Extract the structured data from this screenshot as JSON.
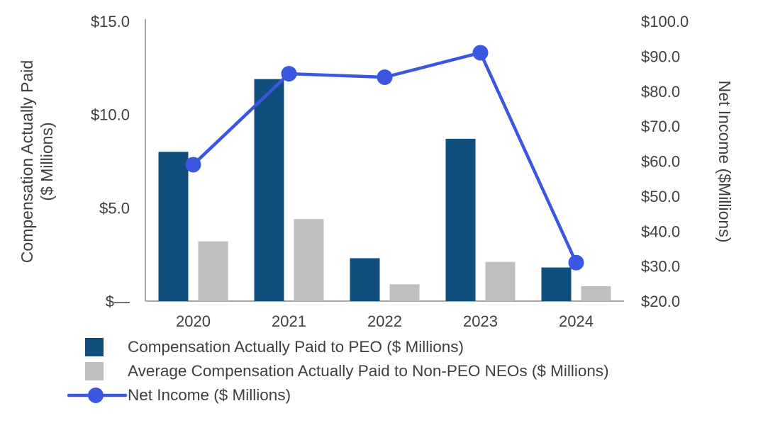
{
  "chart_data": {
    "type": "combo-bar-line",
    "categories": [
      "2020",
      "2021",
      "2022",
      "2023",
      "2024"
    ],
    "series": [
      {
        "name": "Compensation Actually Paid to PEO ($ Millions)",
        "chart_type": "bar",
        "axis": "left",
        "color": "#0F4E7D",
        "values": [
          8.0,
          11.9,
          2.3,
          8.7,
          1.8
        ]
      },
      {
        "name": "Average Compensation Actually Paid to Non-PEO NEOs ($ Millions)",
        "chart_type": "bar",
        "axis": "left",
        "color": "#BFBFBF",
        "values": [
          3.2,
          4.4,
          0.9,
          2.1,
          0.8
        ]
      },
      {
        "name": "Net Income ($ Millions)",
        "chart_type": "line",
        "axis": "right",
        "color": "#3B57E0",
        "values": [
          59,
          85,
          84,
          91,
          31
        ]
      }
    ],
    "left_axis": {
      "title_lines": [
        "Compensation Actually Paid",
        "($ Millions)"
      ],
      "min": 0,
      "max": 15,
      "ticks": [
        {
          "value": 0,
          "label": "$—"
        },
        {
          "value": 5,
          "label": "$5.0"
        },
        {
          "value": 10,
          "label": "$10.0"
        },
        {
          "value": 15,
          "label": "$15.0"
        }
      ]
    },
    "right_axis": {
      "title": "Net Income ($Millions)",
      "min": 20,
      "max": 100,
      "ticks": [
        {
          "value": 20,
          "label": "$20.0"
        },
        {
          "value": 30,
          "label": "$30.0"
        },
        {
          "value": 40,
          "label": "$40.0"
        },
        {
          "value": 50,
          "label": "$50.0"
        },
        {
          "value": 60,
          "label": "$60.0"
        },
        {
          "value": 70,
          "label": "$70.0"
        },
        {
          "value": 80,
          "label": "$80.0"
        },
        {
          "value": 90,
          "label": "$90.0"
        },
        {
          "value": 100,
          "label": "$100.0"
        }
      ]
    },
    "grid": false,
    "legend_position": "bottom-left"
  },
  "styles": {
    "axis_line_color": "#A6A6A6",
    "text_color": "#3F3F3F",
    "background": "#FFFFFF"
  }
}
